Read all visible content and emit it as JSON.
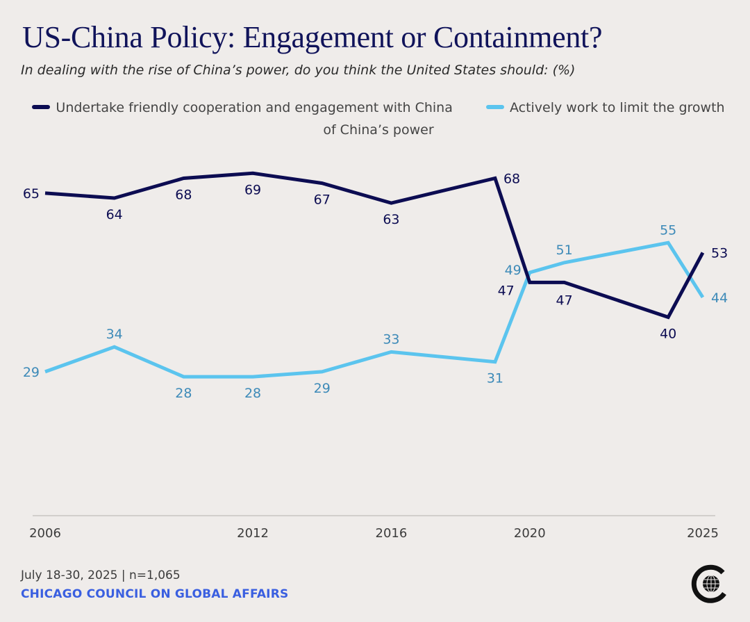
{
  "header": {
    "title": "US-China Policy: Engagement or Containment?",
    "subtitle": "In dealing with the rise of China’s power, do you think the United States should: (%)"
  },
  "legend": {
    "items": [
      {
        "label": "Undertake friendly cooperation and engagement with China",
        "color": "#0c0c52"
      },
      {
        "label": "Actively work to limit the growth of China’s power",
        "color": "#5bc4ee"
      }
    ]
  },
  "chart_data": {
    "type": "line",
    "title": "US-China Policy: Engagement or Containment?",
    "subtitle": "In dealing with the rise of China’s power, do you think the United States should: (%)",
    "xlabel": "",
    "ylabel": "",
    "x": [
      2006,
      2008,
      2010,
      2012,
      2014,
      2016,
      2019,
      2020,
      2021,
      2024,
      2025
    ],
    "xlim": [
      2006,
      2025
    ],
    "ylim": [
      0,
      70
    ],
    "x_ticks": [
      "2006",
      "2012",
      "2016",
      "2020",
      "2025"
    ],
    "grid": false,
    "legend_position": "top",
    "series": [
      {
        "name": "Undertake friendly cooperation and engagement with China",
        "color": "#0c0c52",
        "values": [
          65,
          64,
          68,
          69,
          67,
          63,
          68,
          47,
          47,
          40,
          53
        ],
        "labels": [
          "65",
          "64",
          "68",
          "69",
          "67",
          "63",
          "68",
          "47",
          "47",
          "40",
          "53"
        ]
      },
      {
        "name": "Actively work to limit the growth of China’s power",
        "color": "#5bc4ee",
        "values": [
          29,
          34,
          28,
          28,
          29,
          33,
          31,
          49,
          51,
          55,
          44
        ],
        "labels": [
          "29",
          "34",
          "28",
          "28",
          "29",
          "33",
          "31",
          "49",
          "51",
          "55",
          "44"
        ]
      }
    ]
  },
  "footer": {
    "date_sample": "July 18-30, 2025 | n=1,065",
    "organization": "CHICAGO COUNCIL ON GLOBAL AFFAIRS",
    "logo_icon": "chicago-council-globe-logo"
  },
  "colors": {
    "background": "#efecea",
    "title": "#10135a",
    "engagement": "#0c0c52",
    "containment": "#5bc4ee",
    "containment_label": "#3d8ab8",
    "organization": "#3a5fe0"
  }
}
